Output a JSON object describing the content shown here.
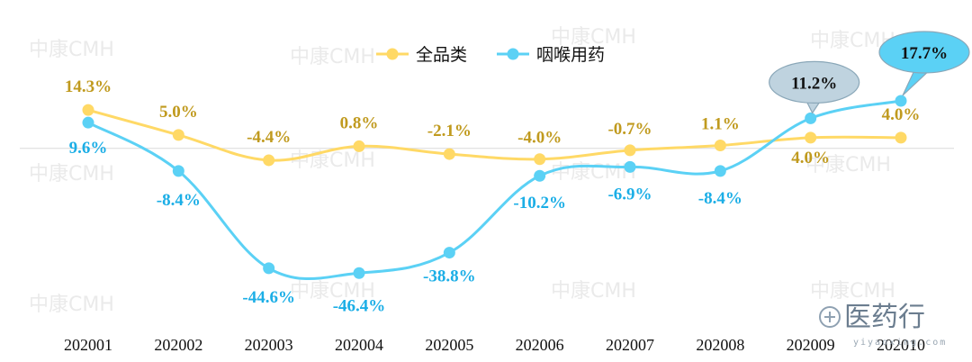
{
  "chart_data": {
    "type": "line",
    "categories": [
      "202001",
      "202002",
      "202003",
      "202004",
      "202005",
      "202006",
      "202007",
      "202008",
      "202009",
      "202010"
    ],
    "series": [
      {
        "name": "全品类",
        "color": "#FFD966",
        "label_color": "#C09A1E",
        "values": [
          14.3,
          5.0,
          -4.4,
          0.8,
          -2.1,
          -4.0,
          -0.7,
          1.1,
          4.0,
          4.0
        ],
        "labels": [
          "14.3%",
          "5.0%",
          "-4.4%",
          "0.8%",
          "-2.1%",
          "-4.0%",
          "-0.7%",
          "1.1%",
          "4.0%",
          "4.0%"
        ]
      },
      {
        "name": "咽喉用药",
        "color": "#5BD1F5",
        "label_color": "#1BAEE6",
        "values": [
          9.6,
          -8.4,
          -44.6,
          -46.4,
          -38.8,
          -10.2,
          -6.9,
          -8.4,
          11.2,
          17.7
        ],
        "labels": [
          "9.6%",
          "-8.4%",
          "-44.6%",
          "-46.4%",
          "-38.8%",
          "-10.2%",
          "-6.9%",
          "-8.4%",
          "11.2%",
          "17.7%"
        ]
      }
    ],
    "callouts": [
      {
        "series": 1,
        "index": 8,
        "text": "11.2%"
      },
      {
        "series": 1,
        "index": 9,
        "text": "17.7%"
      }
    ],
    "ylim": [
      -50,
      17.7
    ],
    "grid": false,
    "legend": "top-center"
  },
  "watermark": "中康CMH",
  "logo": {
    "text": "医药行",
    "sub": "yiyaoxing.com"
  }
}
